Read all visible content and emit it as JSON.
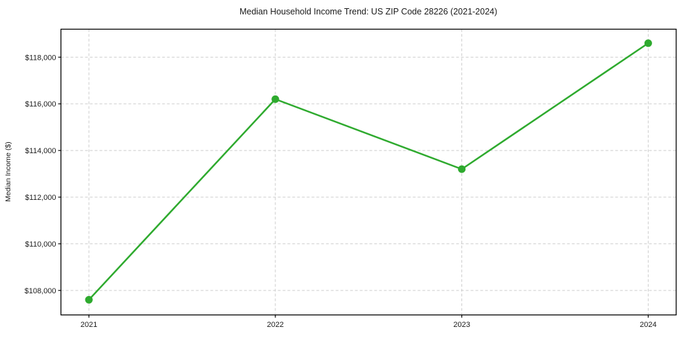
{
  "chart_data": {
    "type": "line",
    "title": "Median Household Income Trend: US ZIP Code 28226 (2021-2024)",
    "xlabel": "",
    "ylabel": "Median Income ($)",
    "categories": [
      "2021",
      "2022",
      "2023",
      "2024"
    ],
    "x": [
      2021,
      2022,
      2023,
      2024
    ],
    "values": [
      107600,
      116200,
      113200,
      118600
    ],
    "yticks": [
      108000,
      110000,
      112000,
      114000,
      116000,
      118000
    ],
    "ytick_labels": [
      "$108,000",
      "$110,000",
      "$112,000",
      "$114,000",
      "$116,000",
      "$118,000"
    ],
    "xlim": [
      2020.85,
      2024.15
    ],
    "ylim": [
      106950,
      119200
    ],
    "grid": true,
    "grid_style": "dashed",
    "legend_position": "none",
    "line_color": "#2eaa2e",
    "marker": "circle",
    "marker_color": "#2eaa2e",
    "grid_color": "#cccccc",
    "spine_color": "#000000",
    "text_color": "#1a1a1a",
    "background": "#ffffff"
  }
}
